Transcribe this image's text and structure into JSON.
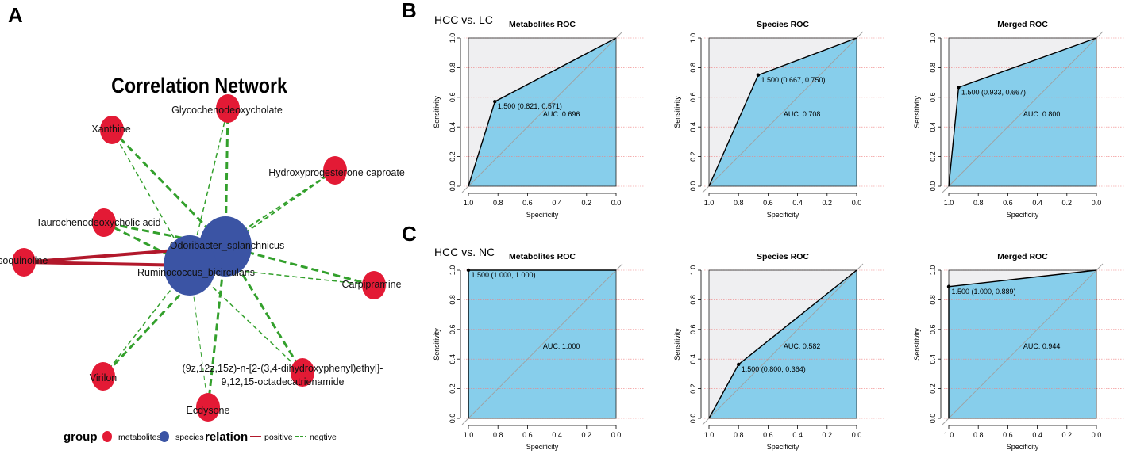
{
  "panel_labels": {
    "a": "A",
    "b": "B",
    "c": "C"
  },
  "chart_data": [
    {
      "type": "network",
      "panel": "A",
      "title": "Correlation Network",
      "nodes": [
        {
          "id": "Xanthine",
          "group": "metabolites"
        },
        {
          "id": "Glycochenodeoxycholate",
          "group": "metabolites"
        },
        {
          "id": "Hydroxyprogesterone caproate",
          "group": "metabolites"
        },
        {
          "id": "Taurochenodeoxycholic acid",
          "group": "metabolites"
        },
        {
          "id": "Isoquinoline",
          "group": "metabolites"
        },
        {
          "id": "Carpipramine",
          "group": "metabolites"
        },
        {
          "id": "Virilon",
          "group": "metabolites"
        },
        {
          "id": "Ecdysone",
          "group": "metabolites"
        },
        {
          "id": "(9z,12z,15z)-n-[2-(3,4-dihydroxyphenyl)ethyl]-9,12,15-octadecatrienamide",
          "label_lines": [
            "(9z,12z,15z)-n-[2-(3,4-dihydroxyphenyl)ethyl]-",
            "9,12,15-octadecatrienamide"
          ],
          "group": "metabolites"
        },
        {
          "id": "Odoribacter_splanchnicus",
          "group": "species"
        },
        {
          "id": "Ruminococcus_bicirculans",
          "group": "species"
        }
      ],
      "edges": [
        {
          "source": "Odoribacter_splanchnicus",
          "target": "Xanthine",
          "relation": "negtive",
          "weight": 3
        },
        {
          "source": "Ruminococcus_bicirculans",
          "target": "Xanthine",
          "relation": "negtive",
          "weight": 1.5
        },
        {
          "source": "Odoribacter_splanchnicus",
          "target": "Glycochenodeoxycholate",
          "relation": "negtive",
          "weight": 3
        },
        {
          "source": "Ruminococcus_bicirculans",
          "target": "Glycochenodeoxycholate",
          "relation": "negtive",
          "weight": 1.5
        },
        {
          "source": "Odoribacter_splanchnicus",
          "target": "Hydroxyprogesterone caproate",
          "relation": "negtive",
          "weight": 2
        },
        {
          "source": "Ruminococcus_bicirculans",
          "target": "Hydroxyprogesterone caproate",
          "relation": "negtive",
          "weight": 2
        },
        {
          "source": "Odoribacter_splanchnicus",
          "target": "Taurochenodeoxycholic acid",
          "relation": "negtive",
          "weight": 3
        },
        {
          "source": "Ruminococcus_bicirculans",
          "target": "Taurochenodeoxycholic acid",
          "relation": "negtive",
          "weight": 3
        },
        {
          "source": "Odoribacter_splanchnicus",
          "target": "Isoquinoline",
          "relation": "positive",
          "weight": 4
        },
        {
          "source": "Ruminococcus_bicirculans",
          "target": "Isoquinoline",
          "relation": "positive",
          "weight": 4
        },
        {
          "source": "Odoribacter_splanchnicus",
          "target": "Carpipramine",
          "relation": "negtive",
          "weight": 3
        },
        {
          "source": "Ruminococcus_bicirculans",
          "target": "Carpipramine",
          "relation": "negtive",
          "weight": 1.5
        },
        {
          "source": "Odoribacter_splanchnicus",
          "target": "Virilon",
          "relation": "negtive",
          "weight": 3
        },
        {
          "source": "Ruminococcus_bicirculans",
          "target": "Virilon",
          "relation": "negtive",
          "weight": 1.5
        },
        {
          "source": "Odoribacter_splanchnicus",
          "target": "Ecdysone",
          "relation": "negtive",
          "weight": 3
        },
        {
          "source": "Ruminococcus_bicirculans",
          "target": "Ecdysone",
          "relation": "negtive",
          "weight": 1
        },
        {
          "source": "Odoribacter_splanchnicus",
          "target": "(9z,12z,15z)-n-[2-(3,4-dihydroxyphenyl)ethyl]-9,12,15-octadecatrienamide",
          "relation": "negtive",
          "weight": 3
        },
        {
          "source": "Ruminococcus_bicirculans",
          "target": "(9z,12z,15z)-n-[2-(3,4-dihydroxyphenyl)ethyl]-9,12,15-octadecatrienamide",
          "relation": "negtive",
          "weight": 1.5
        }
      ],
      "legend": {
        "group_title": "group",
        "group_items": [
          {
            "label": "metabolites",
            "color": "#e31a35"
          },
          {
            "label": "species",
            "color": "#3b54a4"
          }
        ],
        "relation_title": "relation",
        "relation_items": [
          {
            "label": "positive",
            "color": "#b2182b"
          },
          {
            "label": "negtive",
            "color": "#33a02c"
          }
        ]
      },
      "colors": {
        "metabolites": "#e31a35",
        "species": "#3b54a4",
        "positive": "#b2182b",
        "negtive": "#33a02c"
      }
    },
    {
      "type": "roc",
      "panel": "B",
      "row_label": "HCC vs. LC",
      "title": "Metabolites ROC",
      "xlabel": "Specificity",
      "ylabel": "Sensitivity",
      "specificity": [
        1.0,
        0.821,
        0.0
      ],
      "sensitivity": [
        0.0,
        0.571,
        1.0
      ],
      "threshold_point": {
        "specificity": 0.821,
        "sensitivity": 0.571,
        "label": "1.500 (0.821, 0.571)"
      },
      "auc_label": "AUC: 0.696",
      "xlim": [
        1.0,
        0.0
      ],
      "ylim": [
        0.0,
        1.0
      ],
      "xticks": [
        "1.0",
        "0.8",
        "0.6",
        "0.4",
        "0.2",
        "0.0"
      ],
      "yticks": [
        "0.0",
        "0.2",
        "0.4",
        "0.6",
        "0.8",
        "1.0"
      ],
      "fill_color": "#87ceeb",
      "grid": true
    },
    {
      "type": "roc",
      "panel": "B",
      "title": "Species ROC",
      "xlabel": "Specificity",
      "ylabel": "Sensitivity",
      "specificity": [
        1.0,
        0.667,
        0.0
      ],
      "sensitivity": [
        0.0,
        0.75,
        1.0
      ],
      "threshold_point": {
        "specificity": 0.667,
        "sensitivity": 0.75,
        "label": "1.500 (0.667, 0.750)"
      },
      "auc_label": "AUC: 0.708",
      "xlim": [
        1.0,
        0.0
      ],
      "ylim": [
        0.0,
        1.0
      ],
      "xticks": [
        "1.0",
        "0.8",
        "0.6",
        "0.4",
        "0.2",
        "0.0"
      ],
      "yticks": [
        "0.0",
        "0.2",
        "0.4",
        "0.6",
        "0.8",
        "1.0"
      ],
      "fill_color": "#87ceeb",
      "grid": true
    },
    {
      "type": "roc",
      "panel": "B",
      "title": "Merged ROC",
      "xlabel": "Specificity",
      "ylabel": "Sensitivity",
      "specificity": [
        1.0,
        0.933,
        0.0
      ],
      "sensitivity": [
        0.0,
        0.667,
        1.0
      ],
      "threshold_point": {
        "specificity": 0.933,
        "sensitivity": 0.667,
        "label": "1.500 (0.933, 0.667)"
      },
      "auc_label": "AUC: 0.800",
      "xlim": [
        1.0,
        0.0
      ],
      "ylim": [
        0.0,
        1.0
      ],
      "xticks": [
        "1.0",
        "0.8",
        "0.6",
        "0.4",
        "0.2",
        "0.0"
      ],
      "yticks": [
        "0.0",
        "0.2",
        "0.4",
        "0.6",
        "0.8",
        "1.0"
      ],
      "fill_color": "#87ceeb",
      "grid": true
    },
    {
      "type": "roc",
      "panel": "C",
      "row_label": "HCC vs. NC",
      "title": "Metabolites ROC",
      "xlabel": "Specificity",
      "ylabel": "Sensitivity",
      "specificity": [
        1.0,
        1.0,
        0.0
      ],
      "sensitivity": [
        0.0,
        1.0,
        1.0
      ],
      "threshold_point": {
        "specificity": 1.0,
        "sensitivity": 1.0,
        "label": "1.500 (1.000, 1.000)"
      },
      "auc_label": "AUC: 1.000",
      "xlim": [
        1.0,
        0.0
      ],
      "ylim": [
        0.0,
        1.0
      ],
      "xticks": [
        "1.0",
        "0.8",
        "0.6",
        "0.4",
        "0.2",
        "0.0"
      ],
      "yticks": [
        "0.0",
        "0.2",
        "0.4",
        "0.6",
        "0.8",
        "1.0"
      ],
      "fill_color": "#87ceeb",
      "grid": true
    },
    {
      "type": "roc",
      "panel": "C",
      "title": "Species ROC",
      "xlabel": "Specificity",
      "ylabel": "Sensitivity",
      "specificity": [
        1.0,
        0.8,
        0.0
      ],
      "sensitivity": [
        0.0,
        0.364,
        1.0
      ],
      "threshold_point": {
        "specificity": 0.8,
        "sensitivity": 0.364,
        "label": "1.500 (0.800, 0.364)"
      },
      "auc_label": "AUC: 0.582",
      "xlim": [
        1.0,
        0.0
      ],
      "ylim": [
        0.0,
        1.0
      ],
      "xticks": [
        "1.0",
        "0.8",
        "0.6",
        "0.4",
        "0.2",
        "0.0"
      ],
      "yticks": [
        "0.0",
        "0.2",
        "0.4",
        "0.6",
        "0.8",
        "1.0"
      ],
      "fill_color": "#87ceeb",
      "grid": true
    },
    {
      "type": "roc",
      "panel": "C",
      "title": "Merged ROC",
      "xlabel": "Specificity",
      "ylabel": "Sensitivity",
      "specificity": [
        1.0,
        1.0,
        0.0
      ],
      "sensitivity": [
        0.0,
        0.889,
        1.0
      ],
      "threshold_point": {
        "specificity": 1.0,
        "sensitivity": 0.889,
        "label": "1.500 (1.000, 0.889)"
      },
      "auc_label": "AUC: 0.944",
      "xlim": [
        1.0,
        0.0
      ],
      "ylim": [
        0.0,
        1.0
      ],
      "xticks": [
        "1.0",
        "0.8",
        "0.6",
        "0.4",
        "0.2",
        "0.0"
      ],
      "yticks": [
        "0.0",
        "0.2",
        "0.4",
        "0.6",
        "0.8",
        "1.0"
      ],
      "fill_color": "#87ceeb",
      "grid": true
    }
  ]
}
